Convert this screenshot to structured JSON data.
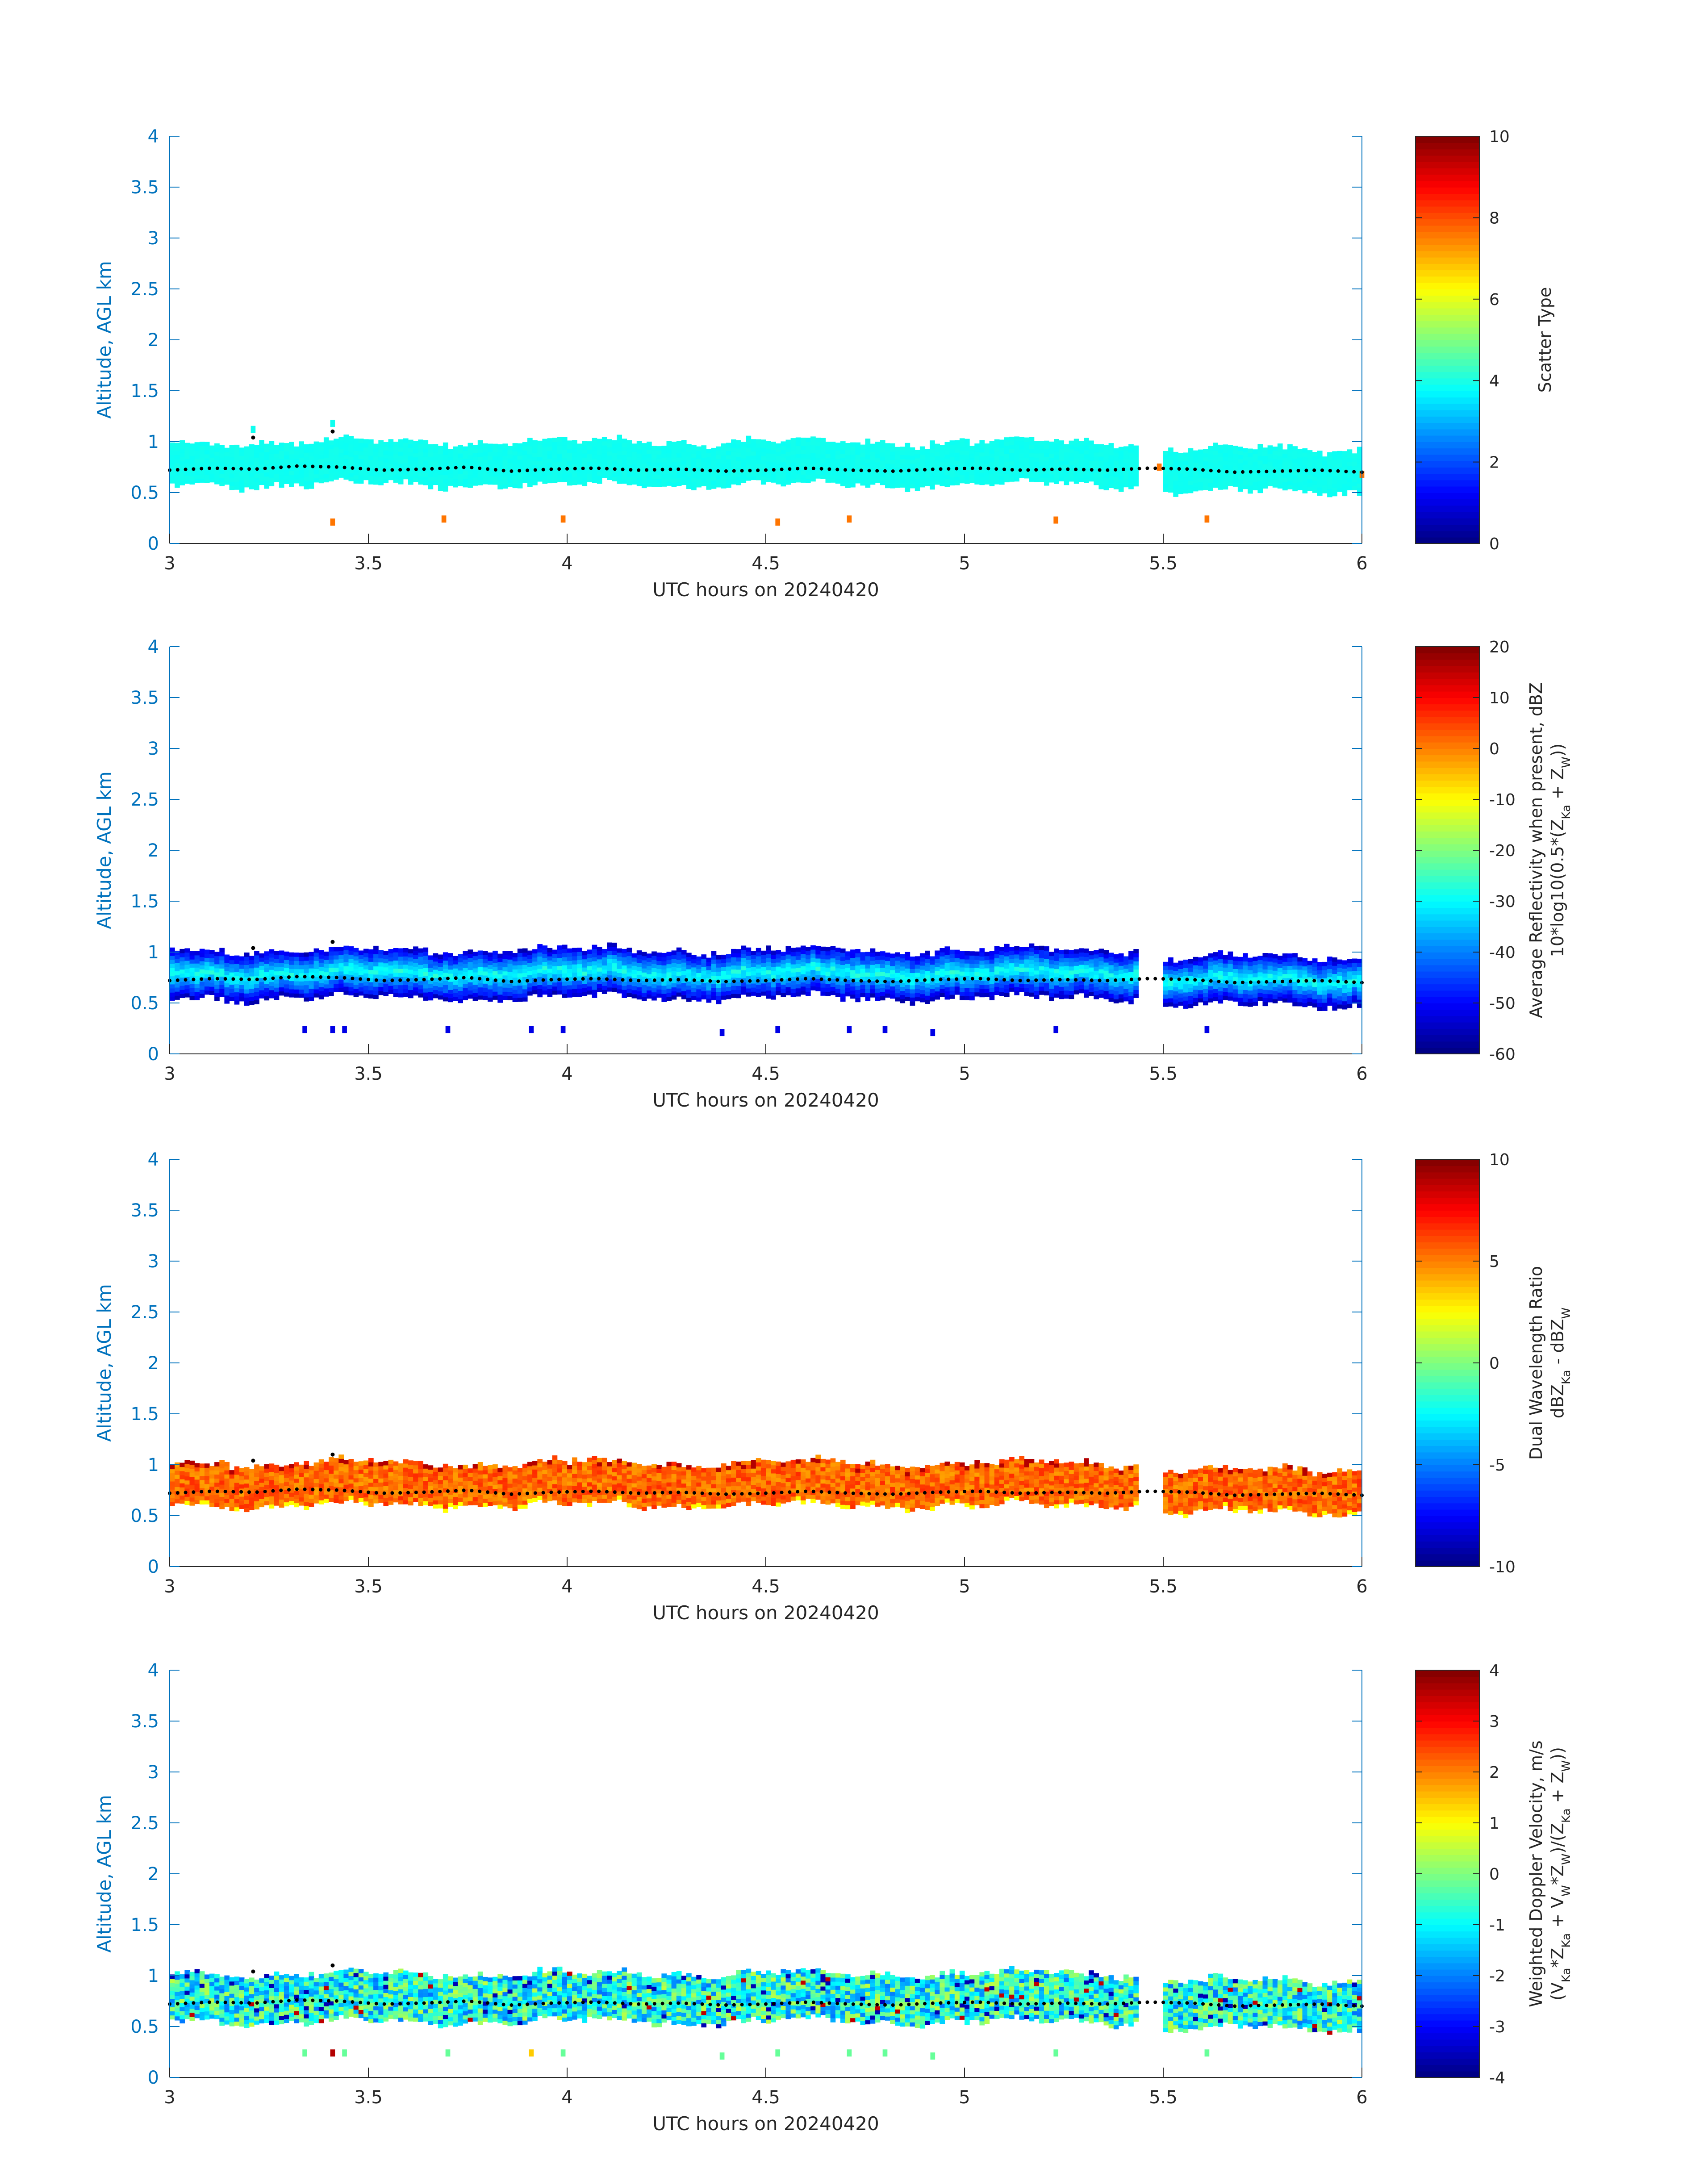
{
  "figure": {
    "x_axis": {
      "label": "UTC hours on 20240420",
      "lim": [
        3,
        6
      ],
      "ticks": [
        "3",
        "3.5",
        "4",
        "4.5",
        "5",
        "5.5",
        "6"
      ],
      "tick_values": [
        3,
        3.5,
        4,
        4.5,
        5,
        5.5,
        6
      ]
    },
    "y_axis": {
      "label": "Altitude, AGL km",
      "lim": [
        0,
        4
      ],
      "ticks": [
        "0",
        "0.5",
        "1",
        "1.5",
        "2",
        "2.5",
        "3",
        "3.5",
        "4"
      ],
      "tick_values": [
        0,
        0.5,
        1,
        1.5,
        2,
        2.5,
        3,
        3.5,
        4
      ],
      "color": "#0072BD"
    },
    "colormap": "jet",
    "dot_color": "#000000"
  },
  "chart_data": [
    {
      "type": "heatmap",
      "panel": "scatter-type",
      "xlabel": "UTC hours on 20240420",
      "ylabel": "Altitude, AGL km",
      "xlim": [
        3,
        6
      ],
      "ylim": [
        0,
        4
      ],
      "colorbar": {
        "label": "Scatter Type",
        "sub_label": null,
        "lim": [
          0,
          10
        ],
        "ticks": [
          "0",
          "2",
          "4",
          "6",
          "8",
          "10"
        ],
        "tick_values": [
          0,
          2,
          4,
          6,
          8,
          10
        ]
      },
      "layer": {
        "base": 0.58,
        "top": 0.98,
        "value_mean": 3.9,
        "value_var": 0.1
      },
      "cloud_top_dots_km": [
        0.72,
        0.74,
        0.73,
        0.76,
        0.75,
        0.72,
        0.73,
        0.75,
        0.71,
        0.73,
        0.74,
        0.72,
        0.73,
        0.71,
        0.72,
        0.74,
        0.72,
        0.71,
        0.73,
        0.74,
        0.72,
        0.73,
        0.72,
        0.74,
        0.73,
        0.7,
        0.71,
        0.72,
        0.7
      ],
      "isolated_points": [
        {
          "t": 3.41,
          "alt": 0.21,
          "value": 7.6
        },
        {
          "t": 3.69,
          "alt": 0.24,
          "value": 7.6
        },
        {
          "t": 3.99,
          "alt": 0.24,
          "value": 7.6
        },
        {
          "t": 4.53,
          "alt": 0.21,
          "value": 7.6
        },
        {
          "t": 4.71,
          "alt": 0.24,
          "value": 7.6
        },
        {
          "t": 5.23,
          "alt": 0.23,
          "value": 7.6
        },
        {
          "t": 5.61,
          "alt": 0.24,
          "value": 7.6
        },
        {
          "t": 3.21,
          "alt": 1.12,
          "value": 3.9
        },
        {
          "t": 3.41,
          "alt": 1.18,
          "value": 3.9
        },
        {
          "t": 5.49,
          "alt": 0.75,
          "value": 7.6
        },
        {
          "t": 6.0,
          "alt": 0.68,
          "value": 7.6
        }
      ]
    },
    {
      "type": "heatmap",
      "panel": "reflectivity",
      "xlabel": "UTC hours on 20240420",
      "ylabel": "Altitude, AGL km",
      "xlim": [
        3,
        6
      ],
      "ylim": [
        0,
        4
      ],
      "colorbar": {
        "label": "Average Reflectivity when present, dBZ",
        "sub_label": "10*log10(0.5*(Z_Ka + Z_W))",
        "lim": [
          -60,
          20
        ],
        "ticks": [
          "-60",
          "-50",
          "-40",
          "-30",
          "-20",
          "-10",
          "0",
          "10",
          "20"
        ],
        "tick_values": [
          -60,
          -50,
          -40,
          -30,
          -20,
          -10,
          0,
          10,
          20
        ]
      },
      "layer": {
        "base": 0.55,
        "top": 1.0,
        "value_mean": -38,
        "value_var": 8
      },
      "cloud_top_dots_km": [
        0.72,
        0.74,
        0.73,
        0.76,
        0.75,
        0.72,
        0.73,
        0.75,
        0.71,
        0.73,
        0.74,
        0.72,
        0.73,
        0.71,
        0.72,
        0.74,
        0.72,
        0.71,
        0.73,
        0.74,
        0.72,
        0.73,
        0.72,
        0.74,
        0.73,
        0.7,
        0.71,
        0.72,
        0.7
      ],
      "isolated_points": [
        {
          "t": 3.34,
          "alt": 0.24,
          "value": -52
        },
        {
          "t": 3.41,
          "alt": 0.24,
          "value": -52
        },
        {
          "t": 3.44,
          "alt": 0.24,
          "value": -52
        },
        {
          "t": 3.7,
          "alt": 0.24,
          "value": -52
        },
        {
          "t": 3.91,
          "alt": 0.24,
          "value": -52
        },
        {
          "t": 3.99,
          "alt": 0.24,
          "value": -52
        },
        {
          "t": 4.39,
          "alt": 0.21,
          "value": -52
        },
        {
          "t": 4.53,
          "alt": 0.24,
          "value": -52
        },
        {
          "t": 4.71,
          "alt": 0.24,
          "value": -52
        },
        {
          "t": 4.8,
          "alt": 0.24,
          "value": -52
        },
        {
          "t": 4.92,
          "alt": 0.21,
          "value": -52
        },
        {
          "t": 5.23,
          "alt": 0.24,
          "value": -52
        },
        {
          "t": 5.61,
          "alt": 0.24,
          "value": -52
        }
      ]
    },
    {
      "type": "heatmap",
      "panel": "dual-wavelength-ratio",
      "xlabel": "UTC hours on 20240420",
      "ylabel": "Altitude, AGL km",
      "xlim": [
        3,
        6
      ],
      "ylim": [
        0,
        4
      ],
      "colorbar": {
        "label": "Dual Wavelength Ratio",
        "sub_label": "dBZ_Ka - dBZ_W",
        "lim": [
          -10,
          10
        ],
        "ticks": [
          "-10",
          "-5",
          "0",
          "5",
          "10"
        ],
        "tick_values": [
          -10,
          -5,
          0,
          5,
          10
        ]
      },
      "layer": {
        "base": 0.6,
        "top": 1.0,
        "value_mean": 5.5,
        "value_var": 1.2
      },
      "cloud_top_dots_km": [
        0.72,
        0.74,
        0.73,
        0.76,
        0.75,
        0.72,
        0.73,
        0.75,
        0.71,
        0.73,
        0.74,
        0.72,
        0.73,
        0.71,
        0.72,
        0.74,
        0.72,
        0.71,
        0.73,
        0.74,
        0.72,
        0.73,
        0.72,
        0.74,
        0.73,
        0.7,
        0.71,
        0.72,
        0.7
      ],
      "isolated_points": []
    },
    {
      "type": "heatmap",
      "panel": "doppler-velocity",
      "xlabel": "UTC hours on 20240420",
      "ylabel": "Altitude, AGL km",
      "xlim": [
        3,
        6
      ],
      "ylim": [
        0,
        4
      ],
      "colorbar": {
        "label": "Weighted Doppler Velocity, m/s",
        "sub_label": "(V_Ka*Z_Ka + V_W*Z_W)/(Z_Ka + Z_W))",
        "lim": [
          -4,
          4
        ],
        "ticks": [
          "-4",
          "-3",
          "-2",
          "-1",
          "0",
          "1",
          "2",
          "3",
          "4"
        ],
        "tick_values": [
          -4,
          -3,
          -2,
          -1,
          0,
          1,
          2,
          3,
          4
        ]
      },
      "layer": {
        "base": 0.55,
        "top": 1.0,
        "value_mean": -0.8,
        "value_var": 0.8
      },
      "cloud_top_dots_km": [
        0.72,
        0.74,
        0.73,
        0.76,
        0.75,
        0.72,
        0.73,
        0.75,
        0.71,
        0.73,
        0.74,
        0.72,
        0.73,
        0.71,
        0.72,
        0.74,
        0.72,
        0.71,
        0.73,
        0.74,
        0.72,
        0.73,
        0.72,
        0.74,
        0.73,
        0.7,
        0.71,
        0.72,
        0.7
      ],
      "isolated_points": [
        {
          "t": 3.34,
          "alt": 0.24,
          "value": -0.2
        },
        {
          "t": 3.41,
          "alt": 0.24,
          "value": 3.6
        },
        {
          "t": 3.44,
          "alt": 0.24,
          "value": -0.2
        },
        {
          "t": 3.7,
          "alt": 0.24,
          "value": -0.2
        },
        {
          "t": 3.91,
          "alt": 0.24,
          "value": 1.4
        },
        {
          "t": 3.99,
          "alt": 0.24,
          "value": -0.2
        },
        {
          "t": 4.39,
          "alt": 0.21,
          "value": -0.2
        },
        {
          "t": 4.53,
          "alt": 0.24,
          "value": -0.2
        },
        {
          "t": 4.71,
          "alt": 0.24,
          "value": -0.2
        },
        {
          "t": 4.8,
          "alt": 0.24,
          "value": -0.2
        },
        {
          "t": 4.92,
          "alt": 0.21,
          "value": -0.2
        },
        {
          "t": 5.23,
          "alt": 0.24,
          "value": -0.2
        },
        {
          "t": 5.61,
          "alt": 0.24,
          "value": -0.2
        }
      ]
    }
  ]
}
